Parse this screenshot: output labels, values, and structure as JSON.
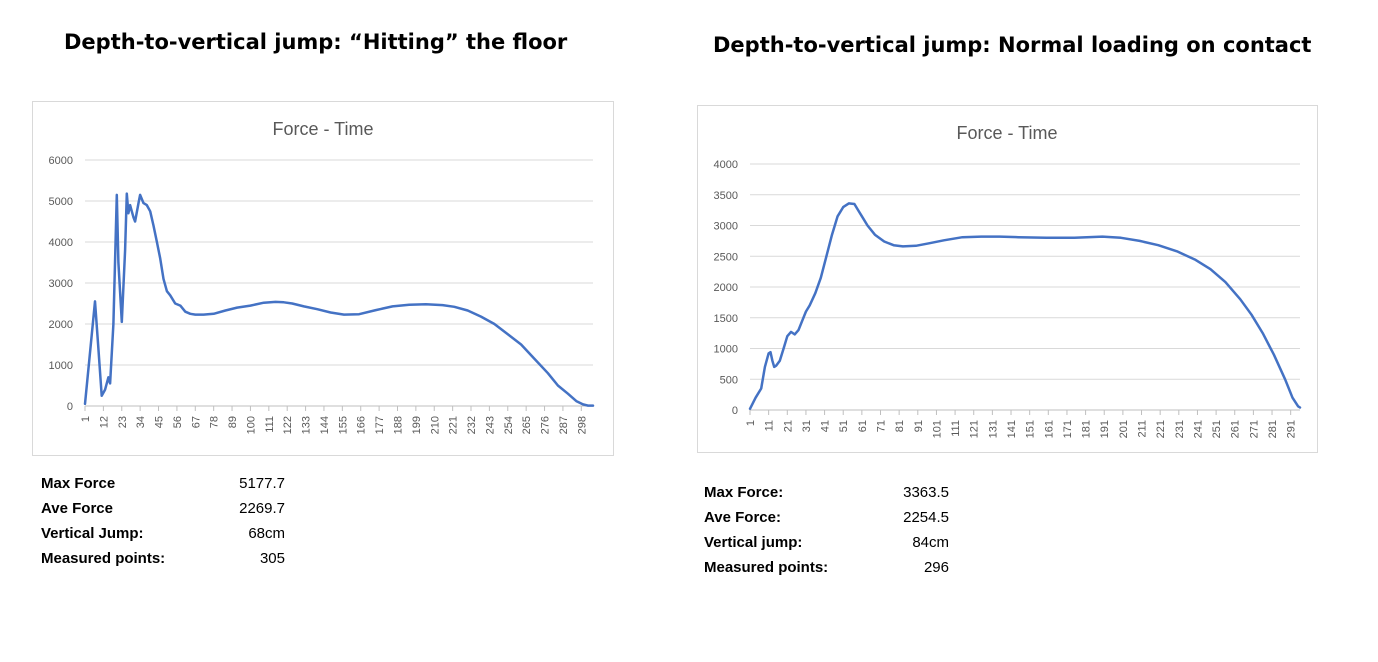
{
  "panels": [
    {
      "heading": "Depth-to-vertical jump: “Hitting” the floor",
      "chart_title": "Force - Time",
      "stats": [
        {
          "label": "Max Force",
          "value": "5177.7"
        },
        {
          "label": "Ave Force",
          "value": "2269.7"
        },
        {
          "label": "Vertical Jump:",
          "value": "68cm"
        },
        {
          "label": "Measured points:",
          "value": "305"
        }
      ]
    },
    {
      "heading": "Depth-to-vertical jump: Normal loading on contact",
      "chart_title": "Force - Time",
      "stats": [
        {
          "label": "Max Force:",
          "value": "3363.5"
        },
        {
          "label": "Ave Force:",
          "value": "2254.5"
        },
        {
          "label": "Vertical jump:",
          "value": "84cm"
        },
        {
          "label": "Measured points:",
          "value": "296"
        }
      ]
    }
  ],
  "chart_data": [
    {
      "type": "line",
      "title": "Force - Time",
      "xlabel": "",
      "ylabel": "",
      "ylim": [
        0,
        6000
      ],
      "yticks": [
        0,
        1000,
        2000,
        3000,
        4000,
        5000,
        6000
      ],
      "xlim": [
        1,
        305
      ],
      "xticks": [
        1,
        12,
        23,
        34,
        45,
        56,
        67,
        78,
        89,
        100,
        111,
        122,
        133,
        144,
        155,
        166,
        177,
        188,
        199,
        210,
        221,
        232,
        243,
        254,
        265,
        276,
        287,
        298
      ],
      "grid": true,
      "legend": "none",
      "color": "#4472c4",
      "series": [
        {
          "x": [
            1,
            4,
            7,
            9,
            11,
            13,
            15,
            16,
            18,
            20,
            21,
            23,
            25,
            26,
            27,
            28,
            29,
            30,
            31,
            33,
            34,
            36,
            38,
            40,
            42,
            44,
            46,
            48,
            50,
            52,
            55,
            58,
            61,
            64,
            67,
            72,
            78,
            85,
            92,
            100,
            108,
            115,
            120,
            125,
            132,
            140,
            148,
            156,
            165,
            175,
            185,
            195,
            205,
            215,
            222,
            230,
            238,
            246,
            254,
            262,
            270,
            278,
            284,
            290,
            295,
            299,
            302,
            305
          ],
          "y": [
            50,
            1300,
            2550,
            1400,
            250,
            400,
            700,
            550,
            2000,
            5150,
            3500,
            2050,
            3800,
            5180,
            4700,
            4900,
            4750,
            4600,
            4500,
            4950,
            5150,
            4950,
            4900,
            4750,
            4400,
            4000,
            3600,
            3100,
            2800,
            2700,
            2500,
            2450,
            2300,
            2250,
            2230,
            2230,
            2250,
            2330,
            2400,
            2450,
            2520,
            2540,
            2530,
            2500,
            2430,
            2360,
            2280,
            2230,
            2240,
            2340,
            2430,
            2470,
            2480,
            2460,
            2420,
            2330,
            2180,
            2000,
            1750,
            1500,
            1150,
            800,
            500,
            300,
            120,
            40,
            10,
            10
          ]
        }
      ]
    },
    {
      "type": "line",
      "title": "Force - Time",
      "xlabel": "",
      "ylabel": "",
      "ylim": [
        0,
        4000
      ],
      "yticks": [
        0,
        500,
        1000,
        1500,
        2000,
        2500,
        3000,
        3500,
        4000
      ],
      "xlim": [
        1,
        296
      ],
      "xticks": [
        1,
        11,
        21,
        31,
        41,
        51,
        61,
        71,
        81,
        91,
        101,
        111,
        121,
        131,
        141,
        151,
        161,
        171,
        181,
        191,
        201,
        211,
        221,
        231,
        241,
        251,
        261,
        271,
        281,
        291
      ],
      "grid": true,
      "legend": "none",
      "color": "#4472c4",
      "series": [
        {
          "x": [
            1,
            4,
            7,
            9,
            11,
            12,
            13,
            14,
            15,
            17,
            19,
            21,
            23,
            25,
            27,
            29,
            31,
            33,
            36,
            39,
            42,
            45,
            48,
            51,
            54,
            57,
            59,
            61,
            64,
            68,
            73,
            78,
            83,
            90,
            97,
            105,
            115,
            125,
            135,
            145,
            160,
            175,
            190,
            200,
            210,
            220,
            230,
            240,
            248,
            256,
            264,
            270,
            276,
            282,
            288,
            292,
            295,
            296
          ],
          "y": [
            20,
            200,
            350,
            700,
            920,
            940,
            800,
            700,
            720,
            800,
            1000,
            1200,
            1270,
            1230,
            1300,
            1450,
            1600,
            1700,
            1900,
            2150,
            2500,
            2850,
            3150,
            3300,
            3360,
            3350,
            3250,
            3150,
            3000,
            2850,
            2740,
            2680,
            2660,
            2670,
            2710,
            2760,
            2810,
            2820,
            2820,
            2810,
            2800,
            2800,
            2820,
            2800,
            2750,
            2680,
            2580,
            2440,
            2290,
            2080,
            1800,
            1550,
            1250,
            900,
            500,
            200,
            60,
            40
          ]
        }
      ]
    }
  ]
}
